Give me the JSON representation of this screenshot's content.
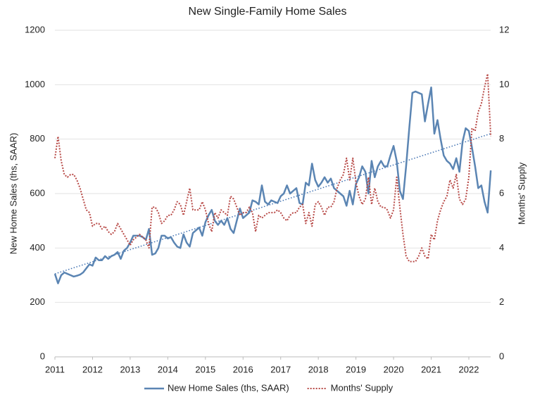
{
  "chart_data": {
    "type": "line",
    "title": "New Single-Family Home Sales",
    "y_label": "New Home Sales (ths, SAAR)",
    "y2_label": "Months' Supply",
    "x": [
      2011,
      2011.083,
      2011.167,
      2011.25,
      2011.333,
      2011.417,
      2011.5,
      2011.583,
      2011.667,
      2011.75,
      2011.833,
      2011.917,
      2012,
      2012.083,
      2012.167,
      2012.25,
      2012.333,
      2012.417,
      2012.5,
      2012.583,
      2012.667,
      2012.75,
      2012.833,
      2012.917,
      2013,
      2013.083,
      2013.167,
      2013.25,
      2013.333,
      2013.417,
      2013.5,
      2013.583,
      2013.667,
      2013.75,
      2013.833,
      2013.917,
      2014,
      2014.083,
      2014.167,
      2014.25,
      2014.333,
      2014.417,
      2014.5,
      2014.583,
      2014.667,
      2014.75,
      2014.833,
      2014.917,
      2015,
      2015.083,
      2015.167,
      2015.25,
      2015.333,
      2015.417,
      2015.5,
      2015.583,
      2015.667,
      2015.75,
      2015.833,
      2015.917,
      2016,
      2016.083,
      2016.167,
      2016.25,
      2016.333,
      2016.417,
      2016.5,
      2016.583,
      2016.667,
      2016.75,
      2016.833,
      2016.917,
      2017,
      2017.083,
      2017.167,
      2017.25,
      2017.333,
      2017.417,
      2017.5,
      2017.583,
      2017.667,
      2017.75,
      2017.833,
      2017.917,
      2018,
      2018.083,
      2018.167,
      2018.25,
      2018.333,
      2018.417,
      2018.5,
      2018.583,
      2018.667,
      2018.75,
      2018.833,
      2018.917,
      2019,
      2019.083,
      2019.167,
      2019.25,
      2019.333,
      2019.417,
      2019.5,
      2019.583,
      2019.667,
      2019.75,
      2019.833,
      2019.917,
      2020,
      2020.083,
      2020.167,
      2020.25,
      2020.333,
      2020.417,
      2020.5,
      2020.583,
      2020.667,
      2020.75,
      2020.833,
      2020.917,
      2021,
      2021.083,
      2021.167,
      2021.25,
      2021.333,
      2021.417,
      2021.5,
      2021.583,
      2021.667,
      2021.75,
      2021.833,
      2021.917,
      2022,
      2022.083,
      2022.167,
      2022.25,
      2022.333,
      2022.417,
      2022.5,
      2022.583
    ],
    "series": [
      {
        "name": "New Home Sales (ths, SAAR)",
        "color": "#5b85b3",
        "dash": "solid",
        "axis": "y",
        "values": [
          305,
          270,
          300,
          310,
          305,
          300,
          295,
          298,
          302,
          310,
          325,
          340,
          335,
          365,
          355,
          355,
          370,
          360,
          370,
          375,
          385,
          360,
          390,
          400,
          420,
          445,
          445,
          445,
          440,
          430,
          470,
          375,
          380,
          400,
          445,
          445,
          435,
          440,
          420,
          405,
          400,
          450,
          420,
          405,
          455,
          465,
          475,
          445,
          495,
          520,
          540,
          500,
          485,
          500,
          485,
          510,
          470,
          455,
          500,
          545,
          510,
          520,
          530,
          575,
          570,
          560,
          630,
          570,
          560,
          575,
          570,
          565,
          590,
          600,
          630,
          600,
          610,
          620,
          565,
          560,
          640,
          630,
          710,
          650,
          625,
          640,
          660,
          640,
          655,
          620,
          610,
          600,
          590,
          555,
          610,
          560,
          635,
          660,
          700,
          680,
          600,
          720,
          660,
          700,
          720,
          700,
          700,
          740,
          775,
          720,
          610,
          580,
          700,
          840,
          970,
          975,
          970,
          965,
          865,
          930,
          990,
          820,
          870,
          800,
          740,
          720,
          710,
          690,
          730,
          680,
          790,
          840,
          830,
          770,
          700,
          620,
          630,
          570,
          530,
          685
        ]
      },
      {
        "name": "Months' Supply",
        "color": "#b84a47",
        "dash": "dotted",
        "axis": "y2",
        "values": [
          7.3,
          8.1,
          7.2,
          6.7,
          6.6,
          6.7,
          6.7,
          6.5,
          6.2,
          5.8,
          5.4,
          5.3,
          4.8,
          4.9,
          4.9,
          4.7,
          4.8,
          4.6,
          4.5,
          4.6,
          4.9,
          4.7,
          4.5,
          4.3,
          4.1,
          4.3,
          4.4,
          4.5,
          4.4,
          4.3,
          4.0,
          5.5,
          5.5,
          5.3,
          4.9,
          5.0,
          5.2,
          5.2,
          5.4,
          5.7,
          5.6,
          5.2,
          5.7,
          6.2,
          5.4,
          5.4,
          5.4,
          5.7,
          5.4,
          4.9,
          4.6,
          5.3,
          5.1,
          5.4,
          5.3,
          5.2,
          5.9,
          5.8,
          5.5,
          5.2,
          5.3,
          5.3,
          5.5,
          5.3,
          4.6,
          5.2,
          5.1,
          5.2,
          5.3,
          5.3,
          5.3,
          5.4,
          5.3,
          5.1,
          5.0,
          5.2,
          5.3,
          5.3,
          5.5,
          5.6,
          4.9,
          5.3,
          4.8,
          5.6,
          5.7,
          5.5,
          5.2,
          5.5,
          5.5,
          5.7,
          6.2,
          6.5,
          6.7,
          7.3,
          6.5,
          7.3,
          6.4,
          5.9,
          5.6,
          5.8,
          6.6,
          5.6,
          6.2,
          5.7,
          5.5,
          5.5,
          5.4,
          5.1,
          5.4,
          6.6,
          5.5,
          4.5,
          3.7,
          3.5,
          3.5,
          3.5,
          3.7,
          4.0,
          3.7,
          3.6,
          4.5,
          4.3,
          5.0,
          5.4,
          5.7,
          5.9,
          6.5,
          6.2,
          6.7,
          5.8,
          5.6,
          5.8,
          6.6,
          8.4,
          8.3,
          9.0,
          9.3,
          9.9,
          10.4,
          8.1
        ]
      }
    ],
    "trendline": {
      "x": [
        2011,
        2022.583
      ],
      "values": [
        305,
        820
      ],
      "color": "#3d6fb0"
    },
    "xlim": [
      2011,
      2022.58
    ],
    "xticks": [
      2011,
      2012,
      2013,
      2014,
      2015,
      2016,
      2017,
      2018,
      2019,
      2020,
      2021,
      2022
    ],
    "ylim": [
      0,
      1200
    ],
    "yticks": [
      0,
      200,
      400,
      600,
      800,
      1000,
      1200
    ],
    "y2lim": [
      0,
      12
    ],
    "y2ticks": [
      0,
      2,
      4,
      6,
      8,
      10,
      12
    ],
    "grid": true,
    "legend": "bottom"
  }
}
